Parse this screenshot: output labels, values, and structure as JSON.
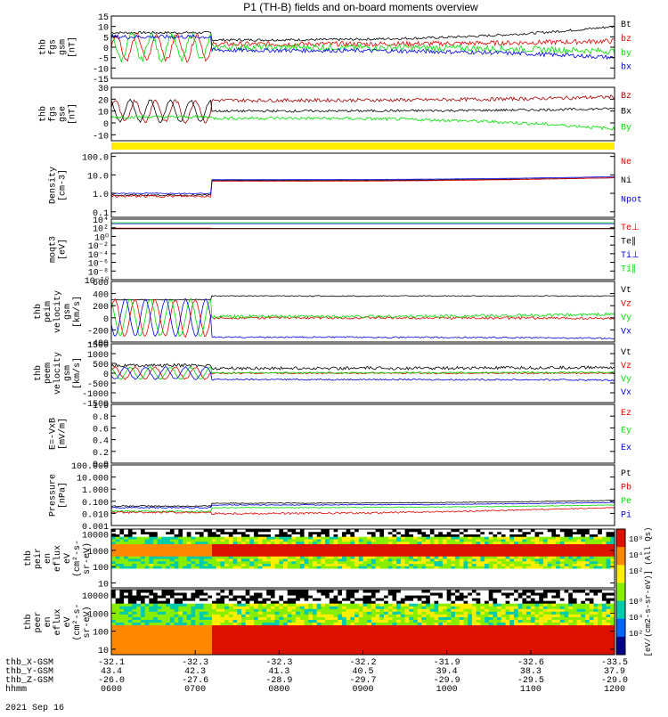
{
  "title": "P1 (TH-B) fields and on-board moments overview",
  "date": "2021 Sep 16",
  "colors": {
    "black": "#000000",
    "red": "#e00000",
    "green": "#00dd00",
    "blue": "#0000dd",
    "darkred": "#a00000",
    "yellow": "#ffee00"
  },
  "chart_data": [
    {
      "type": "line",
      "ylabel": [
        "thb",
        "fgs",
        "gsm",
        "[nT]"
      ],
      "ylim": [
        -15,
        15
      ],
      "ticks": [
        15,
        10,
        5,
        0,
        -5,
        -10,
        -15
      ],
      "legend": [
        {
          "name": "Bt",
          "color": "black"
        },
        {
          "name": "bz",
          "color": "red"
        },
        {
          "name": "by",
          "color": "green"
        },
        {
          "name": "bx",
          "color": "blue"
        }
      ],
      "series": [
        {
          "name": "Bt",
          "color": "black",
          "osc": false,
          "early": 7,
          "late": 3.5,
          "noise": 0.6,
          "end": 10
        },
        {
          "name": "bz",
          "color": "red",
          "osc": true,
          "amp": 6,
          "phase": 0,
          "early": 0,
          "late": 1.5,
          "noise": 1.2,
          "end": 3
        },
        {
          "name": "by",
          "color": "green",
          "osc": true,
          "amp": 6,
          "phase": 1.6,
          "early": 0,
          "late": 0,
          "noise": 1.5,
          "end": -2
        },
        {
          "name": "bx",
          "color": "blue",
          "osc": false,
          "early": 5,
          "late": -1.5,
          "noise": 1.0,
          "end": -5
        }
      ]
    },
    {
      "type": "line",
      "ylabel": [
        "thb",
        "fgs",
        "gse",
        "[nT]"
      ],
      "ylim": [
        -15,
        30
      ],
      "ticks": [
        30,
        20,
        10,
        0,
        -10
      ],
      "legend": [
        {
          "name": "Bz",
          "color": "darkred"
        },
        {
          "name": "Bx",
          "color": "black"
        },
        {
          "name": "By",
          "color": "green"
        }
      ],
      "series": [
        {
          "name": "Bz",
          "color": "darkred",
          "osc": true,
          "amp": 9,
          "phase": 0.4,
          "early": 10,
          "late": 19,
          "noise": 1.5,
          "end": 22
        },
        {
          "name": "Bx",
          "color": "black",
          "osc": true,
          "amp": 9,
          "phase": 2.0,
          "early": 10,
          "late": 10,
          "noise": 1.0,
          "end": 12
        },
        {
          "name": "By",
          "color": "green",
          "osc": false,
          "early": 5,
          "late": 4,
          "noise": 1.3,
          "end": -5
        }
      ]
    },
    {
      "type": "bar-strip",
      "ylabel": [],
      "color": "yellow"
    },
    {
      "type": "line",
      "ylabel": [
        "Density",
        "[cm-3]"
      ],
      "log": true,
      "ylim": [
        0.05,
        150
      ],
      "ticks": [
        100.0,
        10.0,
        1.0,
        0.1
      ],
      "ticklabels": [
        "100.0",
        "10.0",
        "1.0",
        "0.1"
      ],
      "legend": [
        {
          "name": "Ne",
          "color": "red"
        },
        {
          "name": "Ni",
          "color": "black"
        },
        {
          "name": "Npot",
          "color": "blue"
        }
      ],
      "series": [
        {
          "name": "Ni",
          "color": "black",
          "osc": false,
          "early": 0.8,
          "late": 5,
          "noise": 0.15,
          "end": 7
        },
        {
          "name": "Ne",
          "color": "red",
          "osc": false,
          "early": 0.7,
          "late": 4.5,
          "noise": 0.2,
          "end": 7
        },
        {
          "name": "Npot",
          "color": "blue",
          "osc": false,
          "early": 1.0,
          "late": 5.5,
          "noise": 0.1,
          "end": 8
        }
      ]
    },
    {
      "type": "line",
      "ylabel": [
        "moqt3",
        "[eV]"
      ],
      "log": true,
      "ylim": [
        1e-10,
        10000.0
      ],
      "ticks": [
        10000,
        100,
        1,
        0.01,
        0.0001,
        1e-06,
        1e-08,
        1e-10
      ],
      "ticklabels": [
        "10⁴",
        "10²",
        "10⁰",
        "10⁻²",
        "10⁻⁴",
        "10⁻⁶",
        "10⁻⁸",
        "10⁻¹⁰"
      ],
      "legend": [
        {
          "name": "Te⊥",
          "color": "red"
        },
        {
          "name": "Te∥",
          "color": "black"
        },
        {
          "name": "Ti⊥",
          "color": "blue"
        },
        {
          "name": "Ti∥",
          "color": "green"
        }
      ],
      "series": [
        {
          "name": "Ti∥",
          "color": "green",
          "osc": false,
          "early": 1500,
          "late": 1500,
          "noise": 0.0,
          "end": 1500
        },
        {
          "name": "Ti⊥",
          "color": "blue",
          "osc": false,
          "early": 900,
          "late": 900,
          "noise": 0.0,
          "end": 900
        },
        {
          "name": "Te⊥",
          "color": "red",
          "osc": false,
          "early": 80,
          "late": 70,
          "noise": 0.0,
          "end": 70
        },
        {
          "name": "Te∥",
          "color": "black",
          "osc": false,
          "early": 60,
          "late": 60,
          "noise": 0.0,
          "end": 60
        }
      ]
    },
    {
      "type": "line",
      "ylabel": [
        "thb",
        "peim",
        "velocity",
        "gsm",
        "[km/s]"
      ],
      "ylim": [
        -400,
        600
      ],
      "ticks": [
        600,
        400,
        200,
        0,
        -200,
        -400
      ],
      "legend": [
        {
          "name": "Vt",
          "color": "black"
        },
        {
          "name": "Vz",
          "color": "red"
        },
        {
          "name": "Vy",
          "color": "green"
        },
        {
          "name": "Vx",
          "color": "blue"
        }
      ],
      "series": [
        {
          "name": "Vt",
          "color": "black",
          "osc": false,
          "early": 300,
          "late": 360,
          "noise": 8,
          "end": 360
        },
        {
          "name": "Vz",
          "color": "red",
          "osc": true,
          "amp": 300,
          "phase": 0.5,
          "early": 0,
          "late": 0,
          "noise": 20,
          "end": -10
        },
        {
          "name": "Vy",
          "color": "green",
          "osc": true,
          "amp": 300,
          "phase": 2.0,
          "early": 0,
          "late": 20,
          "noise": 25,
          "end": 60
        },
        {
          "name": "Vx",
          "color": "blue",
          "osc": true,
          "amp": 300,
          "phase": 3.5,
          "early": 0,
          "late": -320,
          "noise": 12,
          "end": -340
        }
      ]
    },
    {
      "type": "line",
      "ylabel": [
        "thb",
        "peem",
        "velocity",
        "gsm",
        "[km/s]"
      ],
      "ylim": [
        -1500,
        1500
      ],
      "ticks": [
        1500,
        1000,
        500,
        0,
        -500,
        -1000,
        -1500
      ],
      "legend": [
        {
          "name": "Vt",
          "color": "black"
        },
        {
          "name": "Vz",
          "color": "red"
        },
        {
          "name": "Vy",
          "color": "green"
        },
        {
          "name": "Vx",
          "color": "blue"
        }
      ],
      "series": [
        {
          "name": "Vt",
          "color": "black",
          "osc": false,
          "early": 400,
          "late": 250,
          "noise": 80,
          "end": 300
        },
        {
          "name": "Vz",
          "color": "red",
          "osc": true,
          "amp": 300,
          "phase": 0.5,
          "early": 0,
          "late": 0,
          "noise": 40,
          "end": 0
        },
        {
          "name": "Vy",
          "color": "green",
          "osc": true,
          "amp": 300,
          "phase": 2.0,
          "early": 0,
          "late": 20,
          "noise": 40,
          "end": 50
        },
        {
          "name": "Vx",
          "color": "blue",
          "osc": true,
          "amp": 300,
          "phase": 3.5,
          "early": 0,
          "late": -320,
          "noise": 40,
          "end": -350
        }
      ]
    },
    {
      "type": "line",
      "ylabel": [
        "E=-VxB",
        "[mV/m]"
      ],
      "ylim": [
        0,
        1.0
      ],
      "ticks": [
        1.0,
        0.8,
        0.6,
        0.4,
        0.2,
        0.0
      ],
      "ticklabels": [
        "1.0",
        "0.8",
        "0.6",
        "0.4",
        "0.2",
        "0.0"
      ],
      "legend": [
        {
          "name": "Ez",
          "color": "red"
        },
        {
          "name": "Ey",
          "color": "green"
        },
        {
          "name": "Ex",
          "color": "blue"
        }
      ],
      "series": []
    },
    {
      "type": "line",
      "ylabel": [
        "Pressure",
        "[nPa]"
      ],
      "log": true,
      "ylim": [
        0.001,
        100
      ],
      "ticks": [
        100,
        10,
        1,
        0.1,
        0.01,
        0.001
      ],
      "ticklabels": [
        "100.000",
        "10.000",
        "1.000",
        "0.100",
        "0.010",
        "0.001"
      ],
      "legend": [
        {
          "name": "Pt",
          "color": "black"
        },
        {
          "name": "Pb",
          "color": "red"
        },
        {
          "name": "Pe",
          "color": "green"
        },
        {
          "name": "Pi",
          "color": "blue"
        }
      ],
      "series": [
        {
          "name": "Pt",
          "color": "black",
          "osc": false,
          "early": 0.04,
          "late": 0.07,
          "noise": 0.01,
          "end": 0.12
        },
        {
          "name": "Pi",
          "color": "blue",
          "osc": false,
          "early": 0.03,
          "late": 0.05,
          "noise": 0.008,
          "end": 0.08
        },
        {
          "name": "Pe",
          "color": "green",
          "osc": false,
          "early": 0.015,
          "late": 0.03,
          "noise": 0.005,
          "end": 0.05
        },
        {
          "name": "Pb",
          "color": "red",
          "osc": false,
          "early": 0.012,
          "late": 0.01,
          "noise": 0.004,
          "end": 0.03
        }
      ]
    },
    {
      "type": "heatmap",
      "ylabel": [
        "thb",
        "peir",
        "en",
        "eflux",
        "eV",
        "(cm²-s-",
        "sr-eV)"
      ],
      "log": true,
      "ylim": [
        5,
        20000
      ],
      "ticks": [
        10000,
        1000,
        100,
        10
      ],
      "ticklabels": [
        "10000",
        "1000",
        "100",
        "10"
      ],
      "band": [
        [
          80,
          8000
        ],
        [
          400,
          2500
        ]
      ]
    },
    {
      "type": "heatmap",
      "ylabel": [
        "thb",
        "peer",
        "en",
        "eflux",
        "eV",
        "(cm²-s-",
        "sr-eV)"
      ],
      "log": true,
      "ylim": [
        5,
        20000
      ],
      "ticks": [
        10000,
        1000,
        100,
        10
      ],
      "ticklabels": [
        "10000",
        "1000",
        "100",
        "10"
      ],
      "band": [
        [
          5,
          4000
        ],
        [
          5,
          200
        ]
      ]
    }
  ],
  "x_axis": {
    "rows": [
      {
        "label": "thb_X-GSM",
        "values": [
          "-32.1",
          "-32.3",
          "-32.3",
          "-32.2",
          "-31.9",
          "-32.6",
          "-33.5"
        ]
      },
      {
        "label": "thb_Y-GSM",
        "values": [
          "43.4",
          "42.3",
          "41.3",
          "40.5",
          "39.4",
          "38.3",
          "37.9"
        ]
      },
      {
        "label": "thb_Z-GSM",
        "values": [
          "-26.0",
          "-27.6",
          "-28.9",
          "-29.7",
          "-29.9",
          "-29.5",
          "-29.0"
        ]
      },
      {
        "label": "hhmm",
        "values": [
          "0600",
          "0700",
          "0800",
          "0900",
          "1000",
          "1100",
          "1200"
        ]
      }
    ]
  },
  "colorbar": {
    "labels_top": [
      "10⁸",
      "10⁴",
      "10²"
    ],
    "labels_bottom": [
      "10⁸",
      "10⁴",
      "10²"
    ],
    "unit": "[eV/(cm2-s-sr-eV)] (All Qs)"
  }
}
